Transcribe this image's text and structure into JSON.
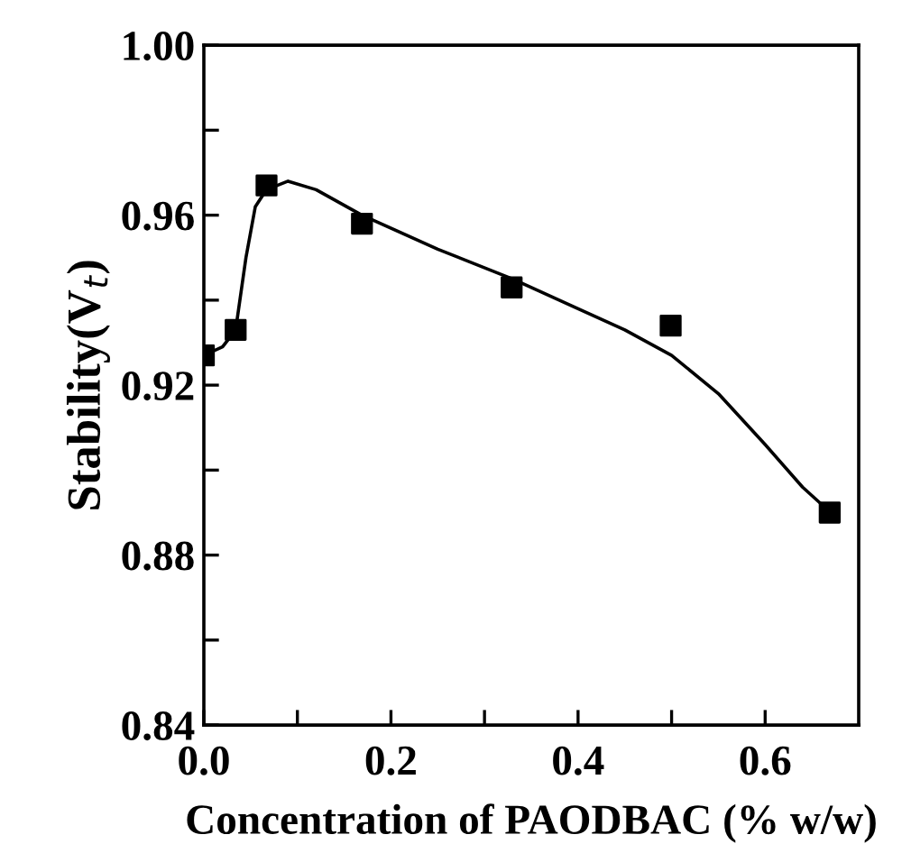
{
  "chart_data": {
    "type": "scatter",
    "xlabel": "Concentration of PAODBAC (% w/w)",
    "ylabel": "Stability(V$_{t}$)",
    "series": [
      {
        "color": "#000000",
        "marker": "square",
        "x": [
          0,
          0.034,
          0.067,
          0.169,
          0.329,
          0.499,
          0.669
        ],
        "values": [
          0.927,
          0.933,
          0.967,
          0.958,
          0.943,
          0.934,
          0.89
        ]
      },
      {
        "type": "line",
        "color": "#000000",
        "marker": "none",
        "line_style": "solid",
        "x": [
          0,
          0.02,
          0.034,
          0.045,
          0.055,
          0.067,
          0.09,
          0.12,
          0.169,
          0.25,
          0.33,
          0.4,
          0.45,
          0.5,
          0.55,
          0.6,
          0.64,
          0.665
        ],
        "values": [
          0.927,
          0.929,
          0.933,
          0.95,
          0.962,
          0.966,
          0.968,
          0.966,
          0.96,
          0.952,
          0.945,
          0.938,
          0.933,
          0.927,
          0.918,
          0.906,
          0.896,
          0.891
        ]
      }
    ],
    "xlim": [
      0,
      0.7
    ],
    "ylim": [
      0.84,
      1.0
    ],
    "xticks": [
      {
        "value": 0.0,
        "label": "0.0"
      },
      {
        "value": 0.1,
        "label": null
      },
      {
        "value": 0.2,
        "label": "0.2"
      },
      {
        "value": 0.3,
        "label": null
      },
      {
        "value": 0.4,
        "label": "0.4"
      },
      {
        "value": 0.5,
        "label": null
      },
      {
        "value": 0.6,
        "label": "0.6"
      }
    ],
    "yticks": [
      0.84,
      {
        "value": 0.86,
        "label": null
      },
      0.88,
      {
        "value": 0.9,
        "label": null
      },
      0.92,
      {
        "value": 0.94,
        "label": null
      },
      0.96,
      {
        "value": 0.98,
        "label": null
      },
      {
        "value": 1.0,
        "label": "1.00"
      }
    ],
    "grid": false,
    "legend": false
  }
}
